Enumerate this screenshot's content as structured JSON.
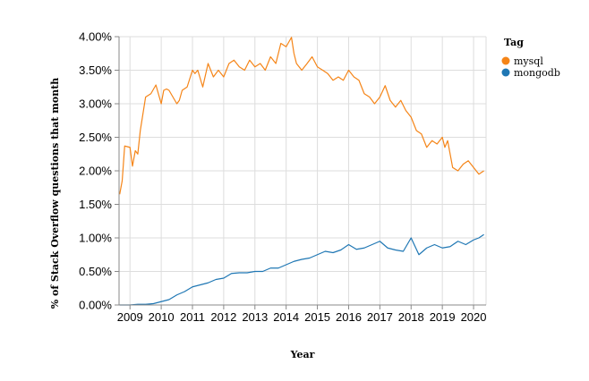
{
  "chart_data": {
    "type": "line",
    "title": "",
    "xlabel": "Year",
    "ylabel": "% of Stack Overflow questions that month",
    "x_ticks": [
      "2009",
      "2010",
      "2011",
      "2012",
      "2013",
      "2014",
      "2015",
      "2016",
      "2017",
      "2018",
      "2019",
      "2020"
    ],
    "y_ticks": [
      "0.00%",
      "0.50%",
      "1.00%",
      "1.50%",
      "2.00%",
      "2.50%",
      "3.00%",
      "3.50%",
      "4.00%"
    ],
    "xlim": [
      2008.65,
      2020.4
    ],
    "ylim": [
      0,
      4.0
    ],
    "grid": true,
    "legend": {
      "title": "Tag",
      "position": "top-right"
    },
    "series": [
      {
        "name": "mysql",
        "color": "#f58518",
        "x": [
          2008.67,
          2008.75,
          2008.83,
          2009.0,
          2009.08,
          2009.17,
          2009.25,
          2009.33,
          2009.5,
          2009.67,
          2009.83,
          2010.0,
          2010.08,
          2010.17,
          2010.25,
          2010.5,
          2010.58,
          2010.67,
          2010.83,
          2011.0,
          2011.08,
          2011.17,
          2011.33,
          2011.5,
          2011.67,
          2011.83,
          2012.0,
          2012.17,
          2012.33,
          2012.5,
          2012.67,
          2012.83,
          2013.0,
          2013.17,
          2013.33,
          2013.5,
          2013.67,
          2013.83,
          2014.0,
          2014.17,
          2014.25,
          2014.33,
          2014.5,
          2014.67,
          2014.83,
          2015.0,
          2015.17,
          2015.33,
          2015.5,
          2015.67,
          2015.83,
          2016.0,
          2016.17,
          2016.33,
          2016.5,
          2016.67,
          2016.83,
          2017.0,
          2017.17,
          2017.33,
          2017.5,
          2017.67,
          2017.83,
          2018.0,
          2018.17,
          2018.33,
          2018.5,
          2018.67,
          2018.83,
          2019.0,
          2019.08,
          2019.17,
          2019.33,
          2019.5,
          2019.67,
          2019.83,
          2020.0,
          2020.17,
          2020.33
        ],
        "values": [
          1.65,
          1.85,
          2.37,
          2.35,
          2.07,
          2.3,
          2.25,
          2.6,
          3.1,
          3.15,
          3.28,
          3.0,
          3.2,
          3.22,
          3.2,
          3.0,
          3.05,
          3.2,
          3.25,
          3.5,
          3.45,
          3.5,
          3.25,
          3.6,
          3.4,
          3.5,
          3.4,
          3.6,
          3.65,
          3.55,
          3.5,
          3.65,
          3.55,
          3.6,
          3.5,
          3.7,
          3.6,
          3.9,
          3.85,
          3.99,
          3.75,
          3.6,
          3.5,
          3.6,
          3.7,
          3.55,
          3.5,
          3.45,
          3.35,
          3.4,
          3.35,
          3.5,
          3.4,
          3.35,
          3.15,
          3.1,
          3.0,
          3.1,
          3.27,
          3.05,
          2.95,
          3.05,
          2.9,
          2.8,
          2.6,
          2.55,
          2.35,
          2.45,
          2.4,
          2.5,
          2.35,
          2.45,
          2.05,
          2.0,
          2.1,
          2.15,
          2.05,
          1.95,
          2.0
        ]
      },
      {
        "name": "mongodb",
        "color": "#1f77b4",
        "x": [
          2008.67,
          2009.0,
          2009.25,
          2009.5,
          2009.75,
          2010.0,
          2010.25,
          2010.5,
          2010.75,
          2011.0,
          2011.25,
          2011.5,
          2011.75,
          2012.0,
          2012.25,
          2012.5,
          2012.75,
          2013.0,
          2013.25,
          2013.5,
          2013.75,
          2014.0,
          2014.25,
          2014.5,
          2014.75,
          2015.0,
          2015.25,
          2015.5,
          2015.75,
          2016.0,
          2016.25,
          2016.5,
          2016.75,
          2017.0,
          2017.25,
          2017.5,
          2017.75,
          2018.0,
          2018.25,
          2018.5,
          2018.75,
          2019.0,
          2019.25,
          2019.5,
          2019.75,
          2020.0,
          2020.17,
          2020.33
        ],
        "values": [
          0.0,
          0.0,
          0.01,
          0.01,
          0.02,
          0.05,
          0.08,
          0.15,
          0.2,
          0.27,
          0.3,
          0.33,
          0.38,
          0.4,
          0.47,
          0.48,
          0.48,
          0.5,
          0.5,
          0.55,
          0.55,
          0.6,
          0.65,
          0.68,
          0.7,
          0.75,
          0.8,
          0.78,
          0.82,
          0.9,
          0.83,
          0.85,
          0.9,
          0.95,
          0.85,
          0.82,
          0.8,
          1.0,
          0.75,
          0.85,
          0.9,
          0.85,
          0.87,
          0.95,
          0.9,
          0.97,
          1.0,
          1.05
        ]
      }
    ]
  }
}
